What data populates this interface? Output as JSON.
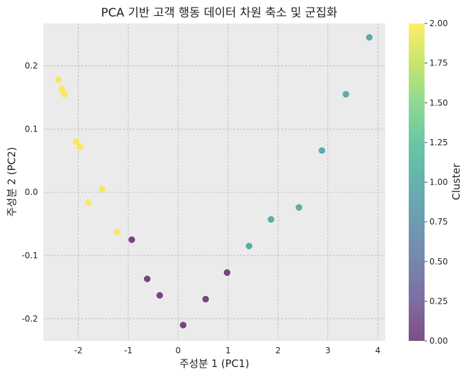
{
  "chart_data": {
    "type": "scatter",
    "title": "PCA 기반 고객 행동 데이터 차원 축소 및 군집화",
    "xlabel": "주성분 1 (PC1)",
    "ylabel": "주성분 2 (PC2)",
    "xlim": [
      -2.7,
      4.15
    ],
    "ylim": [
      -0.235,
      0.267
    ],
    "xticks": [
      -2,
      -1,
      0,
      1,
      2,
      3,
      4
    ],
    "yticks": [
      0.2,
      0.1,
      0.0,
      -0.1,
      -0.2
    ],
    "xtick_labels": [
      "-2",
      "-1",
      "0",
      "1",
      "2",
      "3",
      "4"
    ],
    "ytick_labels": [
      "0.2",
      "0.1",
      "0.0",
      "-0.1",
      "-0.2"
    ],
    "grid": true,
    "background_color": "#ebebeb",
    "points": [
      {
        "x": -2.4,
        "y": 0.178,
        "cluster": 2
      },
      {
        "x": -2.33,
        "y": 0.163,
        "cluster": 2
      },
      {
        "x": -2.28,
        "y": 0.155,
        "cluster": 2
      },
      {
        "x": -2.05,
        "y": 0.08,
        "cluster": 2
      },
      {
        "x": -1.97,
        "y": 0.072,
        "cluster": 2
      },
      {
        "x": -1.52,
        "y": 0.005,
        "cluster": 2
      },
      {
        "x": -1.8,
        "y": -0.016,
        "cluster": 2
      },
      {
        "x": -1.22,
        "y": -0.063,
        "cluster": 2
      },
      {
        "x": -0.93,
        "y": -0.075,
        "cluster": 0
      },
      {
        "x": -0.62,
        "y": -0.137,
        "cluster": 0
      },
      {
        "x": -0.37,
        "y": -0.163,
        "cluster": 0
      },
      {
        "x": 0.1,
        "y": -0.21,
        "cluster": 0
      },
      {
        "x": 0.55,
        "y": -0.169,
        "cluster": 0
      },
      {
        "x": 0.98,
        "y": -0.127,
        "cluster": 0
      },
      {
        "x": 1.42,
        "y": -0.085,
        "cluster": 1
      },
      {
        "x": 1.86,
        "y": -0.043,
        "cluster": 1
      },
      {
        "x": 2.42,
        "y": -0.024,
        "cluster": 1
      },
      {
        "x": 2.88,
        "y": 0.066,
        "cluster": 1
      },
      {
        "x": 3.36,
        "y": 0.155,
        "cluster": 1
      },
      {
        "x": 3.83,
        "y": 0.245,
        "cluster": 1
      }
    ],
    "cluster_colors": {
      "0": "#440154",
      "1": "#21918c",
      "2": "#fde725"
    },
    "point_alpha": 0.7,
    "colorbar": {
      "label": "Cluster",
      "range": [
        0.0,
        2.0
      ],
      "ticks": [
        0.0,
        0.25,
        0.5,
        0.75,
        1.0,
        1.25,
        1.5,
        1.75,
        2.0
      ],
      "tick_labels": [
        "0.00",
        "0.25",
        "0.50",
        "0.75",
        "1.00",
        "1.25",
        "1.50",
        "1.75",
        "2.00"
      ],
      "colormap": "viridis",
      "alpha": 0.7
    }
  }
}
